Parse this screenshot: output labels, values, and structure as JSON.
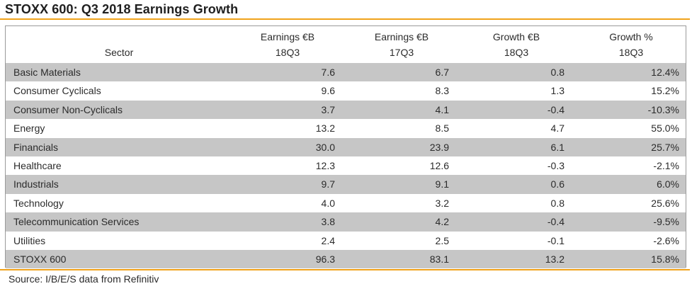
{
  "title": "STOXX 600: Q3 2018 Earnings Growth",
  "source": "Source: I/B/E/S data from Refinitiv",
  "chart_data": {
    "type": "table",
    "title": "STOXX 600: Q3 2018 Earnings Growth",
    "columns": [
      {
        "line1": "",
        "line2": "Sector"
      },
      {
        "line1": "Earnings €B",
        "line2": "18Q3"
      },
      {
        "line1": "Earnings €B",
        "line2": "17Q3"
      },
      {
        "line1": "Growth €B",
        "line2": "18Q3"
      },
      {
        "line1": "Growth %",
        "line2": "18Q3"
      }
    ],
    "rows": [
      {
        "sector": "Basic Materials",
        "earnings_18q3": "7.6",
        "earnings_17q3": "6.7",
        "growth_eur": "0.8",
        "growth_pct": "12.4%"
      },
      {
        "sector": "Consumer Cyclicals",
        "earnings_18q3": "9.6",
        "earnings_17q3": "8.3",
        "growth_eur": "1.3",
        "growth_pct": "15.2%"
      },
      {
        "sector": "Consumer Non-Cyclicals",
        "earnings_18q3": "3.7",
        "earnings_17q3": "4.1",
        "growth_eur": "-0.4",
        "growth_pct": "-10.3%"
      },
      {
        "sector": "Energy",
        "earnings_18q3": "13.2",
        "earnings_17q3": "8.5",
        "growth_eur": "4.7",
        "growth_pct": "55.0%"
      },
      {
        "sector": "Financials",
        "earnings_18q3": "30.0",
        "earnings_17q3": "23.9",
        "growth_eur": "6.1",
        "growth_pct": "25.7%"
      },
      {
        "sector": "Healthcare",
        "earnings_18q3": "12.3",
        "earnings_17q3": "12.6",
        "growth_eur": "-0.3",
        "growth_pct": "-2.1%"
      },
      {
        "sector": "Industrials",
        "earnings_18q3": "9.7",
        "earnings_17q3": "9.1",
        "growth_eur": "0.6",
        "growth_pct": "6.0%"
      },
      {
        "sector": "Technology",
        "earnings_18q3": "4.0",
        "earnings_17q3": "3.2",
        "growth_eur": "0.8",
        "growth_pct": "25.6%"
      },
      {
        "sector": "Telecommunication Services",
        "earnings_18q3": "3.8",
        "earnings_17q3": "4.2",
        "growth_eur": "-0.4",
        "growth_pct": "-9.5%"
      },
      {
        "sector": "Utilities",
        "earnings_18q3": "2.4",
        "earnings_17q3": "2.5",
        "growth_eur": "-0.1",
        "growth_pct": "-2.6%"
      }
    ],
    "total": {
      "sector": "STOXX 600",
      "earnings_18q3": "96.3",
      "earnings_17q3": "83.1",
      "growth_eur": "13.2",
      "growth_pct": "15.8%"
    }
  },
  "colors": {
    "accent_rule": "#f0a21b",
    "shaded_row": "#c6c6c6"
  }
}
